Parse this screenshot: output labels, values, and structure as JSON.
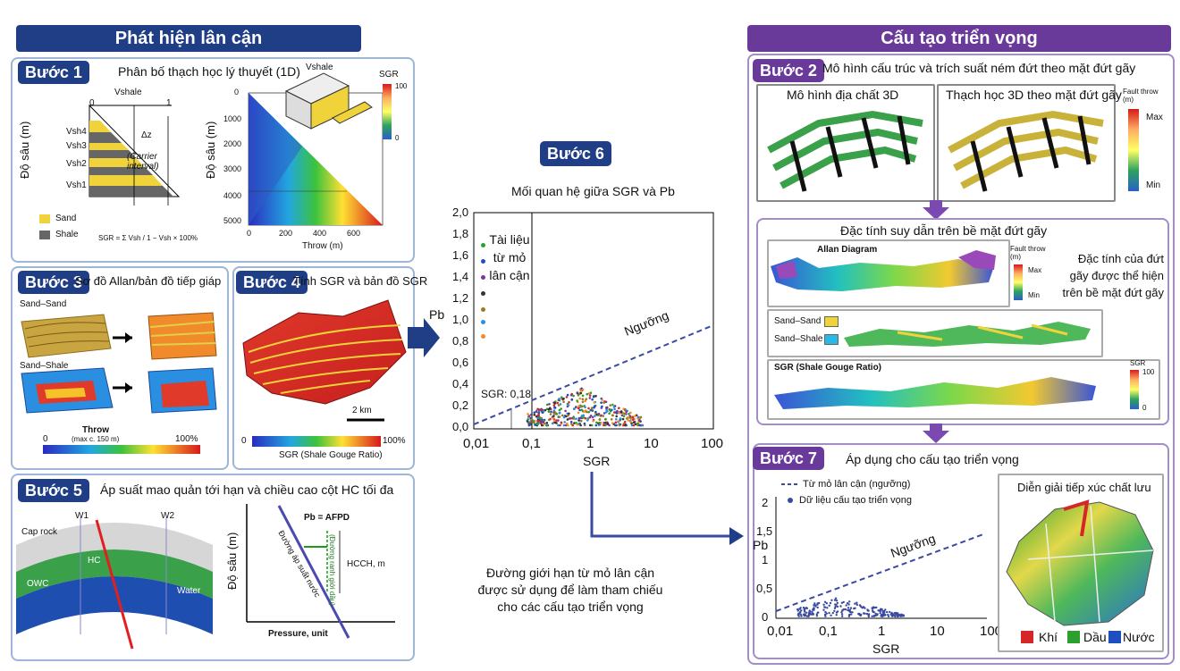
{
  "left_header": "Phát hiện lân cận",
  "right_header": "Cấu tạo triển vọng",
  "step1": {
    "badge": "Bước 1",
    "title": "Phân bố thạch học lý thuyết (1D)",
    "depth_label": "Độ sâu (m)",
    "vshale": "Vshale",
    "zero": "0",
    "one": "1",
    "layers": [
      "Vsh4",
      "Vsh3",
      "Vsh2",
      "Vsh1"
    ],
    "dz": "Δz",
    "carrier": "(Carrier interval)",
    "legend_sand": "Sand",
    "legend_shale": "Shale",
    "sgr_formula": "SGR = Σ Vsh / 1 − Vsh × 100%",
    "sgr_label": "SGR",
    "sgr_max": "100",
    "sgr_min": "0",
    "depth_label2": "Độ sâu (m)",
    "depth_ticks": [
      "0",
      "1000",
      "2000",
      "3000",
      "4000",
      "5000"
    ],
    "throw_ticks": [
      "0",
      "200",
      "400",
      "600"
    ],
    "throw_label": "Throw (m)"
  },
  "step3": {
    "badge": "Bước 3",
    "title": "Sơ đồ Allan/bản đồ tiếp giáp",
    "sand_sand": "Sand–Sand",
    "sand_shale": "Sand–Shale",
    "throw": "Throw",
    "throw_note": "(max c. 150 m)",
    "zero": "0",
    "hundred": "100%"
  },
  "step4": {
    "badge": "Bước 4",
    "title": "Tính SGR và bản đồ SGR",
    "scale": "2 km",
    "zero": "0",
    "hundred": "100%",
    "caption": "SGR (Shale Gouge Ratio)"
  },
  "step5": {
    "badge": "Bước 5",
    "title": "Áp suất mao quản tới hạn và chiều cao cột HC tối đa",
    "caprock": "Cap rock",
    "w1": "W1",
    "w2": "W2",
    "hc": "HC",
    "owc": "OWC",
    "water": "Water",
    "depth_label": "Độ sâu (m)",
    "pb_eq": "Pb = AFPD",
    "line1": "Đường áp suất nước",
    "line2": "(Đường ranh giới dầu)",
    "hcch": "HCCH, m",
    "pressure": "Pressure, unit"
  },
  "step6": {
    "badge": "Bước 6",
    "title": "Mối quan hệ giữa SGR và Pb",
    "ylabel": "Pb",
    "xlabel": "SGR",
    "y_ticks": [
      "2,0",
      "1,8",
      "1,6",
      "1,4",
      "1,2",
      "1,0",
      "0,8",
      "0,6",
      "0,4",
      "0,2",
      "0,0"
    ],
    "x_ticks": [
      "0,01",
      "0,1",
      "1",
      "10",
      "100"
    ],
    "legend_note": "Tài liệu từ mỏ lân cận",
    "threshold": "Ngưỡng",
    "sgr_cut": "SGR: 0,18",
    "caption": "Đường giới hạn từ mỏ lân cận được sử dụng để làm tham chiếu cho các cấu tạo triển vọng"
  },
  "step2": {
    "badge": "Bước 2",
    "title": "Mô hình cấu trúc và trích suất ném đứt theo mặt đứt gãy",
    "model1": "Mô hình địa chất 3D",
    "model2": "Thạch học 3D theo mặt đứt gãy",
    "fault_throw": "Fault throw (m)",
    "max": "Max",
    "min": "Min"
  },
  "step_mid": {
    "title": "Đặc tính suy dẫn trên bề mặt đứt gãy",
    "allan": "Allan Diagram",
    "fault_throw": "Fault throw (m)",
    "max": "Max",
    "min": "Min",
    "note": "Đặc tính của đứt gãy được thể hiện trên bề mặt đứt gãy",
    "sand_sand": "Sand–Sand",
    "sand_shale": "Sand–Shale",
    "sgr": "SGR (Shale Gouge Ratio)",
    "sgr_label": "SGR",
    "sgr_max": "100",
    "sgr_min": "0"
  },
  "step7": {
    "badge": "Bước 7",
    "title": "Áp dụng cho cấu tạo triển vọng",
    "legend1": "Từ mỏ lân cận (ngưỡng)",
    "legend2": "Dữ liệu cấu tạo triển vọng",
    "ylabel": "Pb",
    "xlabel": "SGR",
    "y_ticks": [
      "2",
      "1,5",
      "1",
      "0,5",
      "0"
    ],
    "x_ticks": [
      "0,01",
      "0,1",
      "1",
      "10",
      "100"
    ],
    "threshold": "Ngưỡng",
    "contact_title": "Diễn giải tiếp xúc chất lưu",
    "gas": "Khí",
    "oil": "Dầu",
    "water": "Nước"
  },
  "colors": {
    "navy": "#1f3e86",
    "purple": "#6a3a9b",
    "gas": "#d62728",
    "oil": "#2ca02c",
    "water": "#1f4fbf"
  }
}
